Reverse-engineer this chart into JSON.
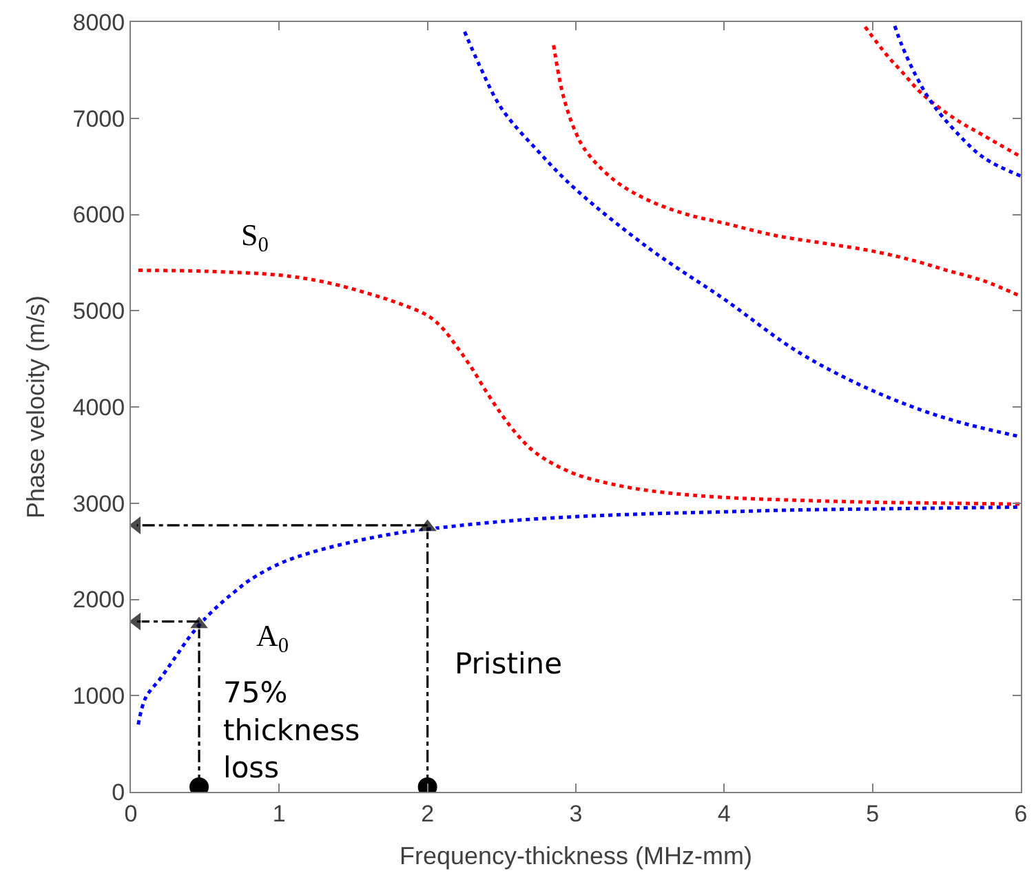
{
  "chart_data": {
    "type": "line",
    "xlabel": "Frequency-thickness (MHz-mm)",
    "ylabel": "Phase velocity (m/s)",
    "xlim": [
      0,
      6
    ],
    "xticks": [
      0,
      1,
      2,
      3,
      4,
      5,
      6
    ],
    "ylim": [
      0,
      8000
    ],
    "yticks": [
      0,
      1000,
      2000,
      3000,
      4000,
      5000,
      6000,
      7000,
      8000
    ],
    "line_style": "dotted",
    "marker": "none",
    "series": [
      {
        "color": "#0000ff",
        "x": [
          0.05,
          0.1,
          0.2,
          0.3,
          0.4,
          0.5,
          0.6,
          0.7,
          0.8,
          1.0,
          1.2,
          1.5,
          1.8,
          2.0,
          2.5,
          3.0,
          3.5,
          4.0,
          4.5,
          5.0,
          5.5,
          6.0
        ],
        "values": [
          700,
          980,
          1180,
          1400,
          1620,
          1800,
          1950,
          2080,
          2200,
          2370,
          2480,
          2600,
          2690,
          2730,
          2810,
          2860,
          2890,
          2910,
          2930,
          2940,
          2950,
          2960
        ]
      },
      {
        "color": "#ff0000",
        "x": [
          0.05,
          0.5,
          1.0,
          1.3,
          1.6,
          1.8,
          2.0,
          2.1,
          2.2,
          2.3,
          2.4,
          2.5,
          2.6,
          2.7,
          2.8,
          3.0,
          3.3,
          3.6,
          4.0,
          4.5,
          5.0,
          5.5,
          6.0
        ],
        "values": [
          5420,
          5410,
          5370,
          5300,
          5180,
          5080,
          4950,
          4820,
          4620,
          4400,
          4150,
          3920,
          3720,
          3560,
          3450,
          3300,
          3180,
          3110,
          3060,
          3030,
          3010,
          3000,
          2990
        ]
      },
      {
        "color": "#0000ff",
        "x": [
          2.25,
          2.35,
          2.5,
          2.75,
          3.0,
          3.5,
          4.0,
          4.5,
          5.0,
          5.5,
          6.0
        ],
        "values": [
          7900,
          7550,
          7100,
          6650,
          6260,
          5640,
          5120,
          4570,
          4170,
          3880,
          3690
        ]
      },
      {
        "color": "#ff0000",
        "x": [
          2.85,
          2.9,
          2.95,
          3.0,
          3.05,
          3.15,
          3.3,
          3.5,
          3.75,
          4.0,
          4.35,
          4.72,
          5.0,
          5.28,
          5.5,
          5.75,
          6.0
        ],
        "values": [
          7760,
          7330,
          7050,
          6850,
          6700,
          6510,
          6310,
          6140,
          6000,
          5910,
          5780,
          5690,
          5620,
          5520,
          5420,
          5310,
          5150
        ]
      },
      {
        "color": "#ff0000",
        "x": [
          4.95,
          5.1,
          5.2,
          5.33,
          5.55,
          5.75,
          6.0
        ],
        "values": [
          7950,
          7650,
          7480,
          7260,
          7000,
          6820,
          6600
        ]
      },
      {
        "color": "#0000ff",
        "x": [
          5.15,
          5.2,
          5.3,
          5.4,
          5.55,
          5.75,
          6.0
        ],
        "values": [
          7960,
          7750,
          7420,
          7160,
          6880,
          6590,
          6400
        ]
      },
      {
        "color": "#000000",
        "line_style": "dashed",
        "marker": "triangle",
        "x": [
          0.46,
          0.46
        ],
        "values": [
          50,
          1740
        ]
      },
      {
        "color": "#000000",
        "line_style": "dashed",
        "marker": "triangle",
        "x": [
          0.46,
          0.04
        ],
        "values": [
          1770,
          1770
        ]
      },
      {
        "color": "#000000",
        "line_style": "dashed",
        "marker": "triangle",
        "x": [
          2.0,
          2.0
        ],
        "values": [
          50,
          2750
        ]
      },
      {
        "color": "#000000",
        "line_style": "dashed",
        "marker": "triangle",
        "x": [
          2.0,
          0.04
        ],
        "values": [
          2770,
          2770
        ]
      },
      {
        "color": "#000000",
        "type": "scatter",
        "marker": "circle",
        "x": [
          0.46,
          2.0
        ],
        "values": [
          50,
          50
        ]
      }
    ],
    "annotations": [
      "S$_{0}$",
      "A$_{0}$",
      "75%\nthickness\nloss",
      "Pristine"
    ]
  }
}
